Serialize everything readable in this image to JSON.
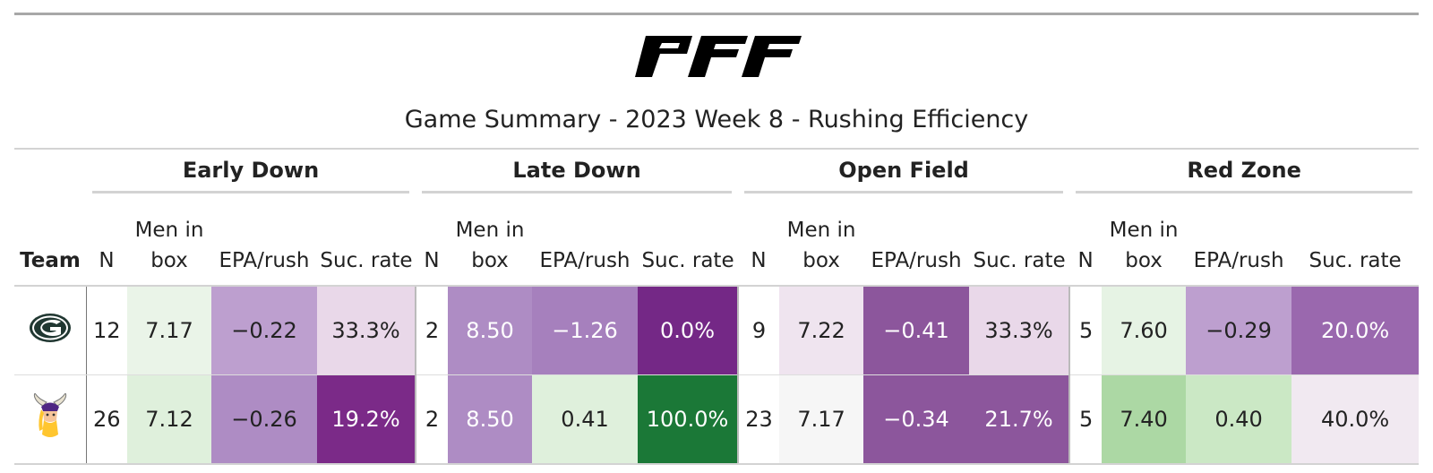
{
  "brand": "PFF",
  "title": "Game Summary - 2023 Week 8 - Rushing Efficiency",
  "groups": [
    "Early Down",
    "Late Down",
    "Open Field",
    "Red Zone"
  ],
  "columns": {
    "team": "Team",
    "n": "N",
    "box_line1": "Men in",
    "box_line2": "box",
    "epa": "EPA/rush",
    "suc": "Suc. rate"
  },
  "rows": [
    {
      "team_icon": "packers-logo",
      "cells": [
        {
          "v": "12",
          "bg": "#ffffff",
          "c": "lightbg"
        },
        {
          "v": "7.17",
          "bg": "#eaf4e8",
          "c": "lightbg"
        },
        {
          "v": "−0.22",
          "bg": "#bd9fcf",
          "c": "lightbg"
        },
        {
          "v": "33.3%",
          "bg": "#e9d8e9",
          "c": "lightbg"
        },
        {
          "v": "2",
          "bg": "#ffffff",
          "c": "lightbg"
        },
        {
          "v": "8.50",
          "bg": "#ae8cc4",
          "c": "darkbg"
        },
        {
          "v": "−1.26",
          "bg": "#a680bd",
          "c": "darkbg"
        },
        {
          "v": "0.0%",
          "bg": "#742886",
          "c": "darkbg"
        },
        {
          "v": "9",
          "bg": "#ffffff",
          "c": "lightbg"
        },
        {
          "v": "7.22",
          "bg": "#efe4ef",
          "c": "lightbg"
        },
        {
          "v": "−0.41",
          "bg": "#8c569c",
          "c": "darkbg"
        },
        {
          "v": "33.3%",
          "bg": "#e9d8e9",
          "c": "lightbg"
        },
        {
          "v": "5",
          "bg": "#ffffff",
          "c": "lightbg"
        },
        {
          "v": "7.60",
          "bg": "#e6f3e4",
          "c": "lightbg"
        },
        {
          "v": "−0.29",
          "bg": "#bd9fcf",
          "c": "lightbg"
        },
        {
          "v": "20.0%",
          "bg": "#9a68ae",
          "c": "darkbg"
        }
      ]
    },
    {
      "team_icon": "vikings-logo",
      "cells": [
        {
          "v": "26",
          "bg": "#ffffff",
          "c": "lightbg"
        },
        {
          "v": "7.12",
          "bg": "#dff0dc",
          "c": "lightbg"
        },
        {
          "v": "−0.26",
          "bg": "#ae8cc4",
          "c": "lightbg"
        },
        {
          "v": "19.2%",
          "bg": "#7b2a88",
          "c": "darkbg"
        },
        {
          "v": "2",
          "bg": "#ffffff",
          "c": "lightbg"
        },
        {
          "v": "8.50",
          "bg": "#ae8cc4",
          "c": "darkbg"
        },
        {
          "v": "0.41",
          "bg": "#dff0dc",
          "c": "lightbg"
        },
        {
          "v": "100.0%",
          "bg": "#1b7837",
          "c": "darkbg"
        },
        {
          "v": "23",
          "bg": "#ffffff",
          "c": "lightbg"
        },
        {
          "v": "7.17",
          "bg": "#f6f6f6",
          "c": "lightbg"
        },
        {
          "v": "−0.34",
          "bg": "#8c569c",
          "c": "darkbg"
        },
        {
          "v": "21.7%",
          "bg": "#8c569c",
          "c": "darkbg"
        },
        {
          "v": "5",
          "bg": "#ffffff",
          "c": "lightbg"
        },
        {
          "v": "7.40",
          "bg": "#acd8a4",
          "c": "lightbg"
        },
        {
          "v": "0.40",
          "bg": "#cbe8c5",
          "c": "lightbg"
        },
        {
          "v": "40.0%",
          "bg": "#f1e9f1",
          "c": "lightbg"
        }
      ]
    }
  ]
}
